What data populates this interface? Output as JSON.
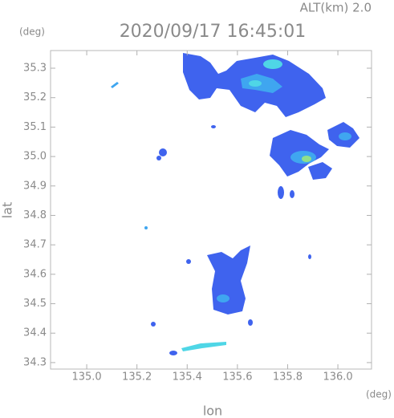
{
  "alt_label": "ALT(km) 2.0",
  "chart_data": {
    "type": "map",
    "title": "2020/09/17 16:45:01",
    "x_label": "lon",
    "y_label": "lat",
    "x_unit": "(deg)",
    "y_unit": "(deg)",
    "xlim": [
      134.856,
      136.134
    ],
    "ylim": [
      34.278,
      35.36
    ],
    "xticks": [
      {
        "value": 135.0,
        "label": "135.0"
      },
      135.2,
      135.4,
      135.6,
      135.8,
      {
        "value": 136.0,
        "label": "136.0"
      }
    ],
    "yticks": [
      34.3,
      34.4,
      34.5,
      34.6,
      34.7,
      34.8,
      34.9,
      {
        "value": 35.0,
        "label": "35.0"
      },
      35.1,
      35.2,
      35.3
    ]
  }
}
